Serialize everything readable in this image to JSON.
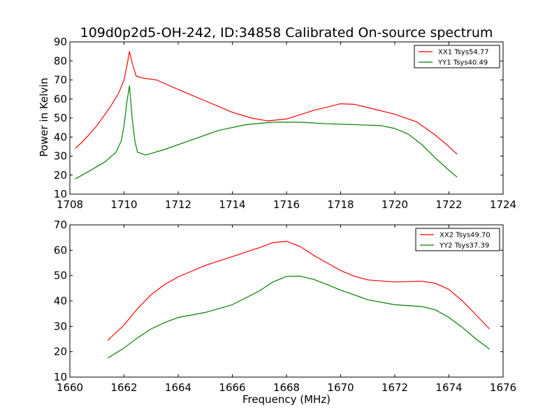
{
  "figure": {
    "title": "109d0p2d5-OH-242, ID:34858 Calibrated On-source spectrum",
    "ylabel": "Power in Kelvin",
    "xlabel": "Frequency (MHz)"
  },
  "chart_data": [
    {
      "type": "line",
      "title": "109d0p2d5-OH-242, ID:34858 Calibrated On-source spectrum",
      "xlabel": "",
      "ylabel": "Power in Kelvin",
      "xlim": [
        1708,
        1724
      ],
      "ylim": [
        10,
        90
      ],
      "xticks": [
        1708,
        1710,
        1712,
        1714,
        1716,
        1718,
        1720,
        1722,
        1724
      ],
      "yticks": [
        10,
        20,
        30,
        40,
        50,
        60,
        70,
        80,
        90
      ],
      "grid": false,
      "legend_position": "top-right",
      "series": [
        {
          "name": "XX1 Tsys54.77",
          "color": "#ff0000",
          "points": [
            [
              1708.2,
              34
            ],
            [
              1708.5,
              38
            ],
            [
              1709.0,
              46
            ],
            [
              1709.5,
              56
            ],
            [
              1709.8,
              63
            ],
            [
              1710.0,
              70
            ],
            [
              1710.1,
              77
            ],
            [
              1710.2,
              85
            ],
            [
              1710.3,
              79
            ],
            [
              1710.45,
              72
            ],
            [
              1710.7,
              71
            ],
            [
              1711.2,
              70
            ],
            [
              1712.0,
              65
            ],
            [
              1713.0,
              59
            ],
            [
              1714.0,
              53
            ],
            [
              1714.7,
              50
            ],
            [
              1715.3,
              48.5
            ],
            [
              1716.0,
              49.5
            ],
            [
              1717.0,
              54
            ],
            [
              1718.0,
              57.5
            ],
            [
              1718.5,
              57.2
            ],
            [
              1719.0,
              55.5
            ],
            [
              1720.0,
              52
            ],
            [
              1720.8,
              48
            ],
            [
              1721.5,
              41
            ],
            [
              1722.0,
              35
            ],
            [
              1722.3,
              31
            ]
          ]
        },
        {
          "name": "YY1 Tsys40.49",
          "color": "#008000",
          "points": [
            [
              1708.2,
              18
            ],
            [
              1708.7,
              22
            ],
            [
              1709.3,
              27
            ],
            [
              1709.7,
              32
            ],
            [
              1709.9,
              38
            ],
            [
              1710.0,
              46
            ],
            [
              1710.1,
              58
            ],
            [
              1710.2,
              67
            ],
            [
              1710.3,
              50
            ],
            [
              1710.4,
              38
            ],
            [
              1710.5,
              32
            ],
            [
              1710.8,
              30.5
            ],
            [
              1711.5,
              33.5
            ],
            [
              1712.5,
              38.5
            ],
            [
              1713.5,
              43.5
            ],
            [
              1714.5,
              46.5
            ],
            [
              1715.5,
              47.8
            ],
            [
              1716.5,
              47.8
            ],
            [
              1717.5,
              47
            ],
            [
              1718.5,
              46.5
            ],
            [
              1719.5,
              46
            ],
            [
              1720.0,
              44.5
            ],
            [
              1720.5,
              41.5
            ],
            [
              1721.0,
              36
            ],
            [
              1721.5,
              29
            ],
            [
              1722.0,
              22.5
            ],
            [
              1722.3,
              19
            ]
          ]
        }
      ]
    },
    {
      "type": "line",
      "title": "",
      "xlabel": "Frequency (MHz)",
      "ylabel": "",
      "xlim": [
        1660,
        1676
      ],
      "ylim": [
        10,
        70
      ],
      "xticks": [
        1660,
        1662,
        1664,
        1666,
        1668,
        1670,
        1672,
        1674,
        1676
      ],
      "yticks": [
        10,
        20,
        30,
        40,
        50,
        60,
        70
      ],
      "grid": false,
      "legend_position": "top-right",
      "series": [
        {
          "name": "XX2 Tsys49.70",
          "color": "#ff0000",
          "points": [
            [
              1661.4,
              24.5
            ],
            [
              1662.0,
              30.5
            ],
            [
              1662.5,
              37
            ],
            [
              1663.0,
              42.5
            ],
            [
              1663.5,
              46.5
            ],
            [
              1664.0,
              49.5
            ],
            [
              1665.0,
              54
            ],
            [
              1666.0,
              57.5
            ],
            [
              1667.0,
              61
            ],
            [
              1667.5,
              63
            ],
            [
              1668.0,
              63.5
            ],
            [
              1668.5,
              61.5
            ],
            [
              1669.0,
              58
            ],
            [
              1669.5,
              55
            ],
            [
              1670.0,
              52
            ],
            [
              1670.5,
              49.8
            ],
            [
              1671.0,
              48.3
            ],
            [
              1672.0,
              47.5
            ],
            [
              1673.0,
              47.8
            ],
            [
              1673.5,
              47
            ],
            [
              1674.0,
              44.5
            ],
            [
              1674.5,
              40
            ],
            [
              1675.0,
              34.5
            ],
            [
              1675.5,
              29
            ]
          ]
        },
        {
          "name": "YY2 Tsys37.39",
          "color": "#008000",
          "points": [
            [
              1661.4,
              17.5
            ],
            [
              1662.0,
              21.5
            ],
            [
              1662.5,
              25.5
            ],
            [
              1663.0,
              29
            ],
            [
              1663.5,
              31.5
            ],
            [
              1664.0,
              33.5
            ],
            [
              1665.0,
              35.5
            ],
            [
              1666.0,
              38.5
            ],
            [
              1667.0,
              44
            ],
            [
              1667.5,
              47.5
            ],
            [
              1668.0,
              49.7
            ],
            [
              1668.5,
              49.8
            ],
            [
              1669.0,
              48.5
            ],
            [
              1669.5,
              46.5
            ],
            [
              1670.0,
              44.3
            ],
            [
              1671.0,
              40.5
            ],
            [
              1672.0,
              38.5
            ],
            [
              1673.0,
              37.8
            ],
            [
              1673.5,
              36.5
            ],
            [
              1674.0,
              33.5
            ],
            [
              1674.5,
              29.5
            ],
            [
              1675.0,
              25
            ],
            [
              1675.5,
              21
            ]
          ]
        }
      ]
    }
  ]
}
